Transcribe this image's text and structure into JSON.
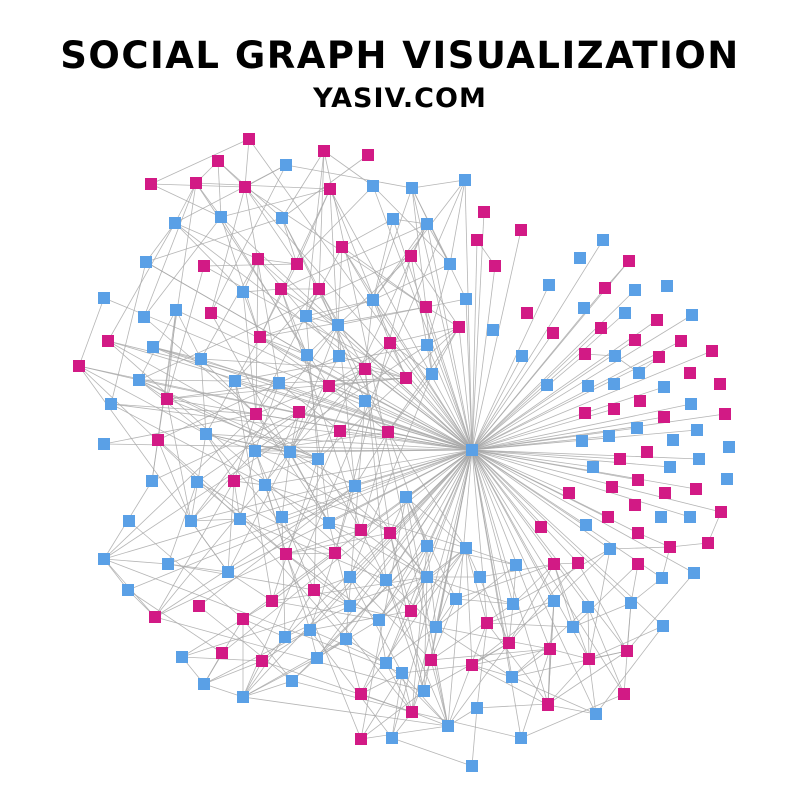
{
  "header": {
    "title": "SOCIAL GRAPH VISUALIZATION",
    "subtitle": "YASIV.COM"
  },
  "colors": {
    "background": "#ffffff",
    "edge": "#a8a8a8",
    "node_blue": "#5aa0e6",
    "node_magenta": "#d21a85",
    "text": "#000000"
  },
  "graph": {
    "node_shape": "square",
    "hub_node_color": "blue",
    "node_types": [
      "blue",
      "magenta"
    ]
  }
}
